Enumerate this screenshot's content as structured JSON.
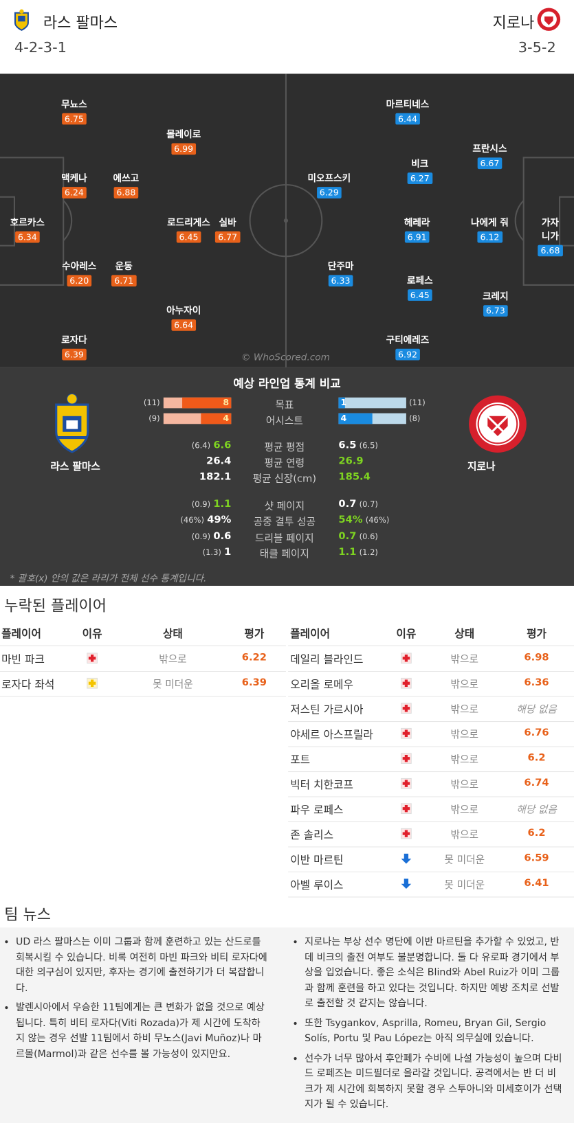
{
  "header": {
    "home": {
      "name": "라스 팔마스",
      "formation": "4-2-3-1"
    },
    "away": {
      "name": "지로나",
      "formation": "3-5-2"
    }
  },
  "pitch": {
    "home_players": [
      {
        "name": "무뇨스",
        "rating": 6.75
      },
      {
        "name": "몰레이로",
        "rating": 6.99
      },
      {
        "name": "맥케나",
        "rating": 6.24
      },
      {
        "name": "에쓰고",
        "rating": 6.88
      },
      {
        "name": "호르카스",
        "rating": 6.34
      },
      {
        "name": "로드리게스",
        "rating": 6.45
      },
      {
        "name": "실바",
        "rating": 6.77
      },
      {
        "name": "수아레스",
        "rating": "6.20"
      },
      {
        "name": "운동",
        "rating": 6.71
      },
      {
        "name": "아누자이",
        "rating": 6.64
      },
      {
        "name": "로자다",
        "rating": 6.39
      }
    ],
    "away_players": [
      {
        "name": "마르티네스",
        "rating": 6.44
      },
      {
        "name": "프란시스",
        "rating": 6.67
      },
      {
        "name": "비크",
        "rating": 6.27
      },
      {
        "name": "미오프스키",
        "rating": 6.29
      },
      {
        "name": "헤레라",
        "rating": 6.91
      },
      {
        "name": "나에게 줘",
        "rating": 6.12
      },
      {
        "name": "가자니가",
        "rating": 6.68
      },
      {
        "name": "단주마",
        "rating": 6.33
      },
      {
        "name": "로페스",
        "rating": 6.45
      },
      {
        "name": "크레지",
        "rating": 6.73
      },
      {
        "name": "구티에레즈",
        "rating": 6.92
      }
    ],
    "watermark": "© WhoScored.com"
  },
  "comparison": {
    "title": "예상 라인업 통계 비교",
    "home_name": "라스 팔마스",
    "away_name": "지로나",
    "bar_rows": [
      {
        "label": "목표",
        "home": 8,
        "home_total": {
          "value": 11,
          "label": "(11)"
        },
        "away": 1,
        "away_total": {
          "value": 11,
          "label": "(11)"
        }
      },
      {
        "label": "어시스트",
        "home": 4,
        "home_total": {
          "value": 9,
          "label": "(9)"
        },
        "away": 4,
        "away_total": {
          "value": 8,
          "label": "(8)"
        }
      }
    ],
    "stat_rows": [
      {
        "label": "평균 평점",
        "home_league": "(6.4)",
        "home": 6.6,
        "away": 6.5,
        "away_league": "(6.5)",
        "leader": "home"
      },
      {
        "label": "평균 연령",
        "home": 26.4,
        "away": 26.9,
        "leader": "away"
      },
      {
        "label": "평균 신장(cm)",
        "home": 182.1,
        "away": 185.4,
        "leader": "away"
      },
      {
        "label": "샷 페이지",
        "home_league": "(0.9)",
        "home": 1.1,
        "away": 0.7,
        "away_league": "(0.7)",
        "leader": "home"
      },
      {
        "label": "공중 결투 성공",
        "home_league": "(46%)",
        "home": "49%",
        "away": "54%",
        "away_league": "(46%)",
        "leader": "away"
      },
      {
        "label": "드리블 페이지",
        "home_league": "(0.9)",
        "home": 0.6,
        "away": 0.7,
        "away_league": "(0.6)",
        "leader": "away"
      },
      {
        "label": "태클 페이지",
        "home_league": "(1.3)",
        "home": 1,
        "away": 1.1,
        "away_league": "(1.2)",
        "leader": "away"
      }
    ],
    "note": "* 괄호(x) 안의 값은 라리가 전체 선수 통계입니다."
  },
  "missing": {
    "title": "누락된 플레이어",
    "columns": [
      "플레이어",
      "이유",
      "상태",
      "평가"
    ],
    "home_rows": [
      {
        "player": "마빈 파크",
        "icon": "injury",
        "status": "밖으로",
        "rating": 6.22
      },
      {
        "player": "로자다 좌석",
        "icon": "doubtful",
        "status": "못 미더운",
        "rating": 6.39
      }
    ],
    "away_rows": [
      {
        "player": "데일리 블라인드",
        "icon": "injury",
        "status": "밖으로",
        "rating": 6.98
      },
      {
        "player": "오리올 로메우",
        "icon": "injury",
        "status": "밖으로",
        "rating": 6.36
      },
      {
        "player": "저스틴 가르시아",
        "icon": "injury",
        "status": "밖으로",
        "rating": "해당 없음"
      },
      {
        "player": "야세르 아스프릴라",
        "icon": "injury",
        "status": "밖으로",
        "rating": 6.76
      },
      {
        "player": "포트",
        "icon": "injury",
        "status": "밖으로",
        "rating": 6.2
      },
      {
        "player": "빅터 치한코프",
        "icon": "injury",
        "status": "밖으로",
        "rating": 6.74
      },
      {
        "player": "파우 로페스",
        "icon": "injury",
        "status": "밖으로",
        "rating": "해당 없음"
      },
      {
        "player": "존 솔리스",
        "icon": "injury",
        "status": "밖으로",
        "rating": 6.2
      },
      {
        "player": "이반 마르틴",
        "icon": "down",
        "status": "못 미더운",
        "rating": 6.59
      },
      {
        "player": "아벨 루이스",
        "icon": "down",
        "status": "못 미더운",
        "rating": 6.41
      }
    ]
  },
  "team_news": {
    "title": "팀 뉴스",
    "home": [
      "UD 라스 팔마스는 이미 그룹과 함께 훈련하고 있는 산드로를 회복시킬 수 있습니다. 비록 여전히 마빈 파크와 비티 로자다에 대한 의구심이 있지만, 후자는 경기에 출전하기가 더 복잡합니다.",
      "발렌시아에서 우승한 11팀에게는 큰 변화가 없을 것으로 예상됩니다. 특히 비티 로자다(Viti Rozada)가 제 시간에 도착하지 않는 경우 선발 11팀에서 하비 무노스(Javi Muñoz)나 마르몰(Marmol)과 같은 선수를 볼 가능성이 있지만요."
    ],
    "away": [
      "지로나는 부상 선수 명단에 이반 마르틴을 추가할 수 있었고, 반 데 비크의 출전 여부도 불분명합니다. 둘 다 유로파 경기에서 부상을 입었습니다. 좋은 소식은 Blind와 Abel Ruiz가 이미 그룹과 함께 훈련을 하고 있다는 것입니다. 하지만 예방 조치로 선발로 출전할 것 같지는 않습니다.",
      "또한 Tsygankov, Asprilla, Romeu, Bryan Gil, Sergio Solís, Portu 및 Pau López는 아직 의무실에 있습니다.",
      "선수가 너무 많아서 후안페가 수비에 나설 가능성이 높으며 다비드 로페즈는 미드필더로 올라갈 것입니다. 공격에서는 반 더 비크가 제 시간에 회복하지 못할 경우 스투아니와 미세호이가 선택지가 될 수 있습니다."
    ]
  }
}
